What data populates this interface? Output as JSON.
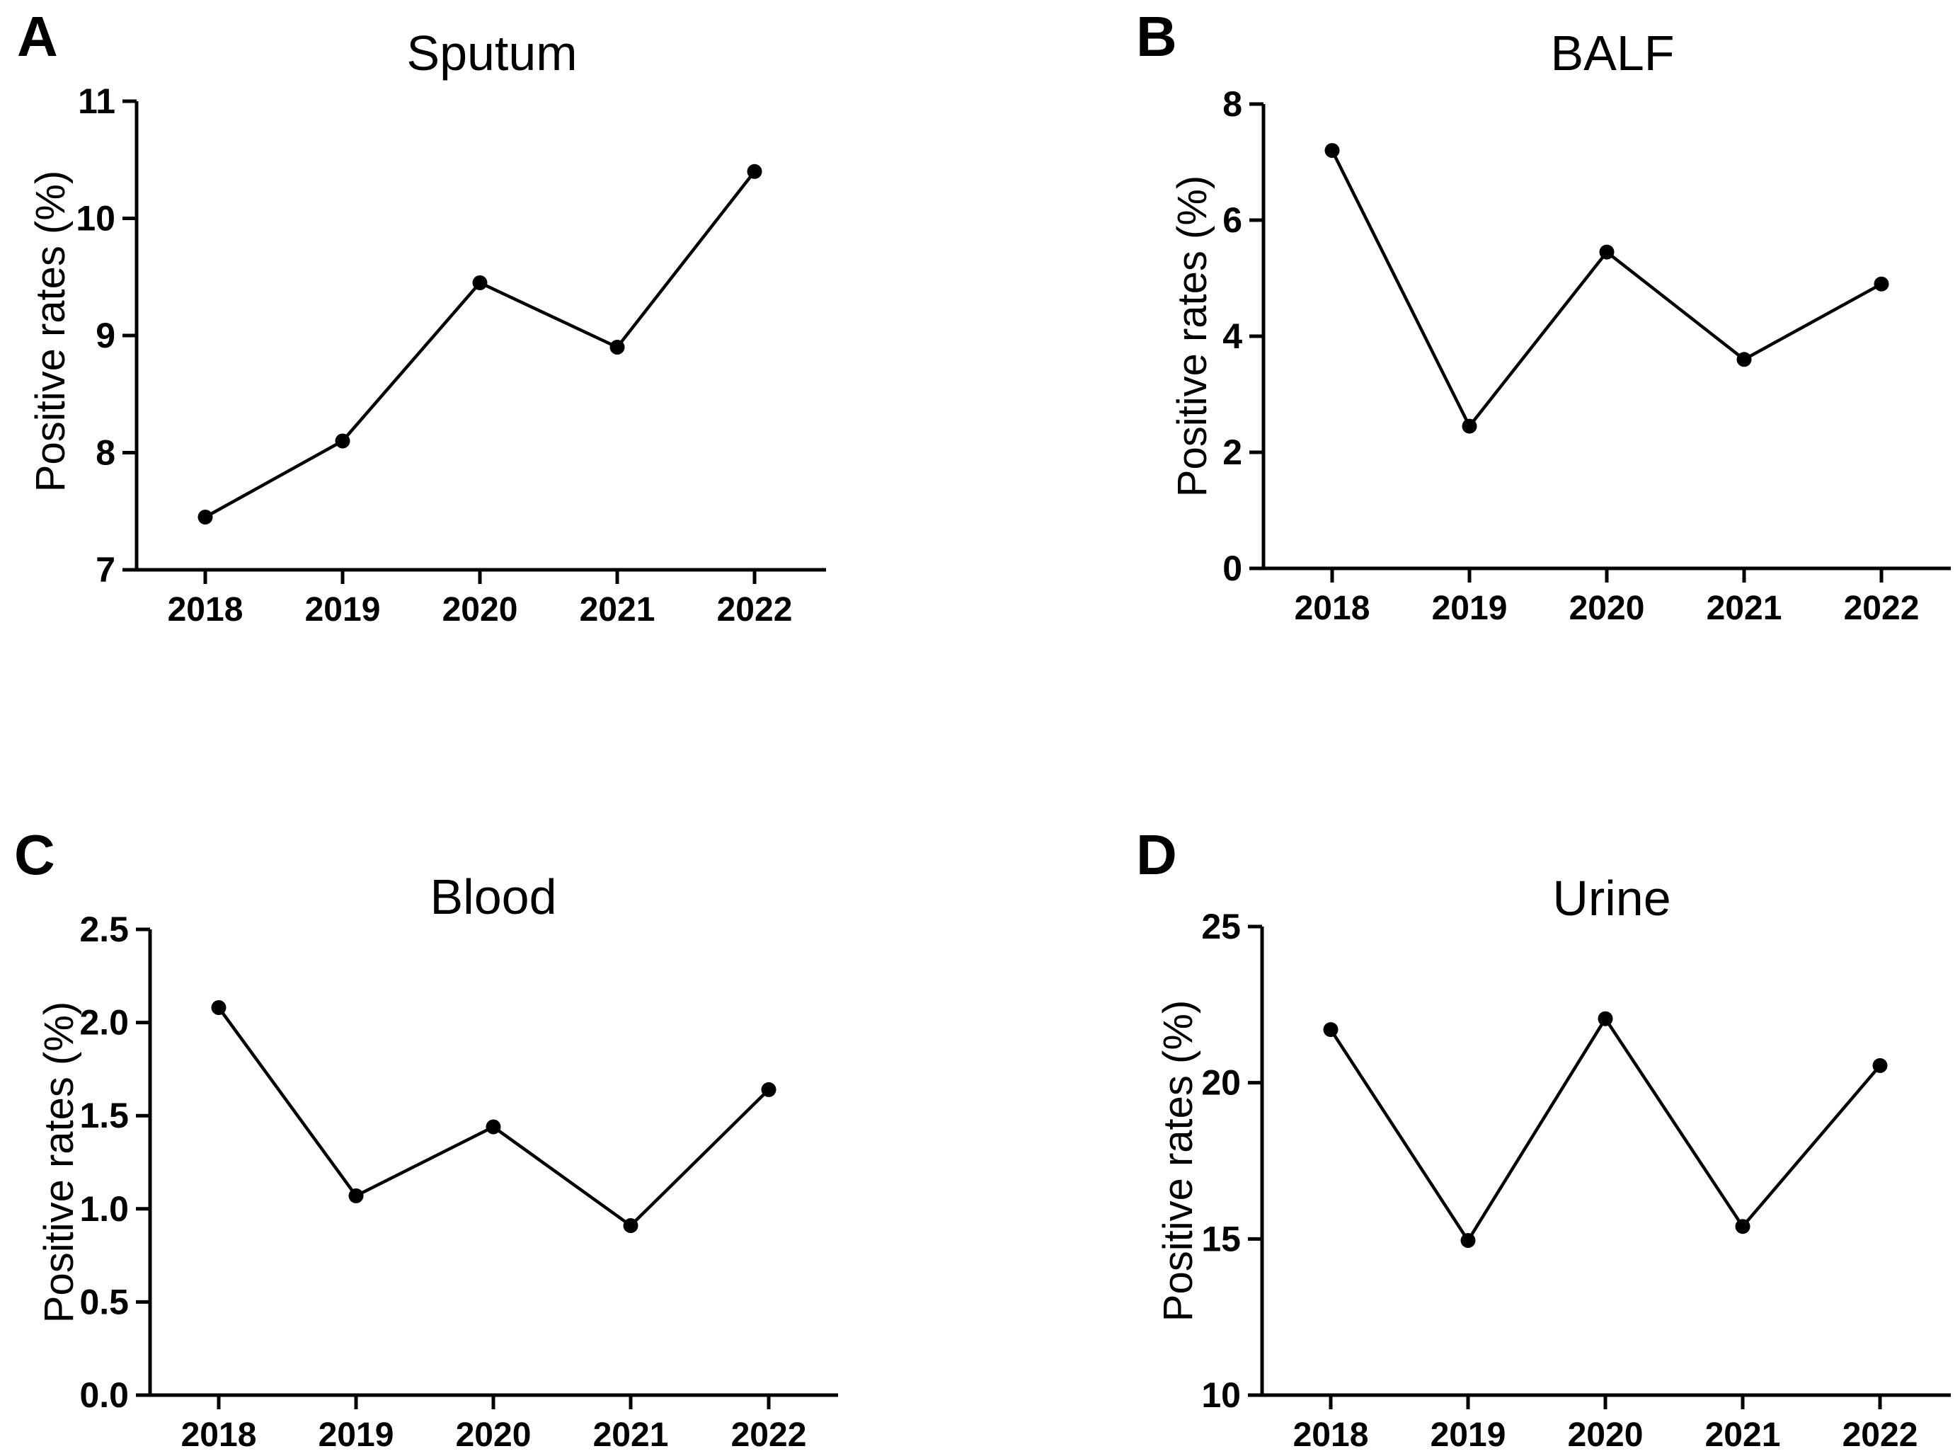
{
  "figure": {
    "background_color": "#ffffff",
    "ink_color": "#000000",
    "layout": "2x2 panel grid",
    "panel_order": [
      "A",
      "B",
      "C",
      "D"
    ]
  },
  "chart_data": [
    {
      "type": "line",
      "panel_letter": "A",
      "title": "Sputum",
      "xlabel": "",
      "ylabel": "Positive rates (%)",
      "categories": [
        "2018",
        "2019",
        "2020",
        "2021",
        "2022"
      ],
      "values": [
        7.45,
        8.1,
        9.45,
        8.9,
        10.4
      ],
      "ylim": [
        7,
        11
      ],
      "yticks": [
        7,
        8,
        9,
        10,
        11
      ],
      "ytick_labels": [
        "7",
        "8",
        "9",
        "10",
        "11"
      ],
      "series_color": "#000000",
      "marker": "filled-circle",
      "grid": false,
      "legend": null
    },
    {
      "type": "line",
      "panel_letter": "B",
      "title": "BALF",
      "xlabel": "",
      "ylabel": "Positive rates (%)",
      "categories": [
        "2018",
        "2019",
        "2020",
        "2021",
        "2022"
      ],
      "values": [
        7.2,
        2.45,
        5.45,
        3.6,
        4.9
      ],
      "ylim": [
        0,
        8
      ],
      "yticks": [
        0,
        2,
        4,
        6,
        8
      ],
      "ytick_labels": [
        "0",
        "2",
        "4",
        "6",
        "8"
      ],
      "series_color": "#000000",
      "marker": "filled-circle",
      "grid": false,
      "legend": null
    },
    {
      "type": "line",
      "panel_letter": "C",
      "title": "Blood",
      "xlabel": "",
      "ylabel": "Positive rates (%)",
      "categories": [
        "2018",
        "2019",
        "2020",
        "2021",
        "2022"
      ],
      "values": [
        2.08,
        1.07,
        1.44,
        0.91,
        1.64
      ],
      "ylim": [
        0,
        2.5
      ],
      "yticks": [
        0,
        0.5,
        1,
        1.5,
        2,
        2.5
      ],
      "ytick_labels": [
        "0.0",
        "0.5",
        "1.0",
        "1.5",
        "2.0",
        "2.5"
      ],
      "series_color": "#000000",
      "marker": "filled-circle",
      "grid": false,
      "legend": null
    },
    {
      "type": "line",
      "panel_letter": "D",
      "title": "Urine",
      "xlabel": "",
      "ylabel": "Positive rates (%)",
      "categories": [
        "2018",
        "2019",
        "2020",
        "2021",
        "2022"
      ],
      "values": [
        21.7,
        14.95,
        22.05,
        15.4,
        20.55
      ],
      "ylim": [
        10,
        25
      ],
      "yticks": [
        10,
        15,
        20,
        25
      ],
      "ytick_labels": [
        "10",
        "15",
        "20",
        "25"
      ],
      "series_color": "#000000",
      "marker": "filled-circle",
      "grid": false,
      "legend": null
    }
  ]
}
